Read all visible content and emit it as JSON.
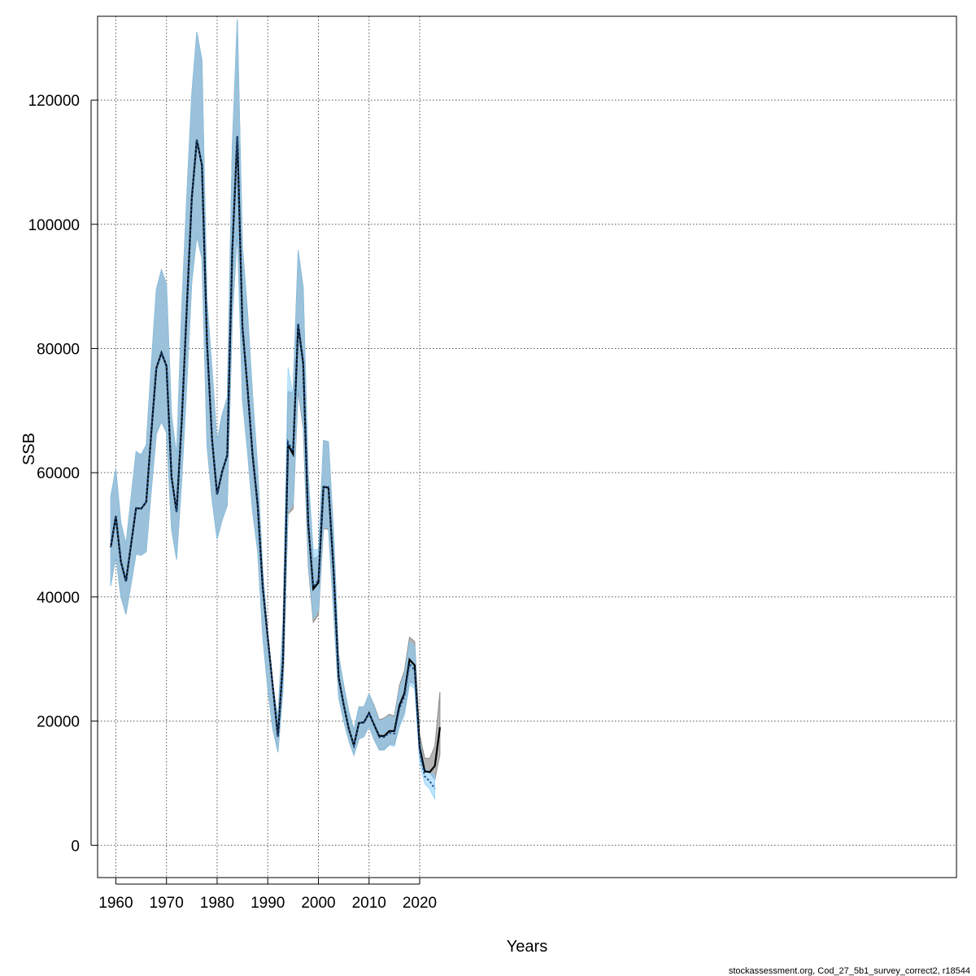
{
  "chart_data": {
    "type": "line",
    "xlabel": "Years",
    "ylabel": "SSB",
    "footer": "stockassessment.org, Cod_27_5b1_survey_correct2, r18544",
    "xlim": [
      1956.4,
      2126.0
    ],
    "ylim": [
      -5200,
      133500
    ],
    "grid": true,
    "x_ticks": [
      1960,
      1970,
      1980,
      1990,
      2000,
      2010,
      2020
    ],
    "y_ticks": [
      0,
      20000,
      40000,
      60000,
      80000,
      100000,
      120000
    ],
    "colors": {
      "base_band": "#b4b4b4",
      "base_band_edge": "#8c8c8c",
      "base_line": "#000000",
      "retro_band": "#87cefa",
      "retro_line": "#1e4f8a",
      "frame": "#000000",
      "grid": "#555555"
    },
    "series": [
      {
        "role": "base",
        "years": [
          1959,
          1960,
          1961,
          1962,
          1963,
          1964,
          1965,
          1966,
          1967,
          1968,
          1969,
          1970,
          1971,
          1972,
          1973,
          1974,
          1975,
          1976,
          1977,
          1978,
          1979,
          1980,
          1981,
          1982,
          1983,
          1984,
          1985,
          1986,
          1987,
          1988,
          1989,
          1990,
          1991,
          1992,
          1993,
          1994,
          1995,
          1996,
          1997,
          1998,
          1999,
          2000,
          2001,
          2002,
          2003,
          2004,
          2005,
          2006,
          2007,
          2008,
          2009,
          2010,
          2011,
          2012,
          2013,
          2014,
          2015,
          2016,
          2017,
          2018,
          2019,
          2020,
          2021,
          2022,
          2023,
          2024
        ],
        "estimate": [
          48000,
          53000,
          45700,
          42500,
          48400,
          54300,
          54200,
          55300,
          66400,
          76800,
          79300,
          77200,
          59300,
          53700,
          68200,
          86300,
          104200,
          113600,
          109500,
          81000,
          65400,
          56500,
          60200,
          62800,
          95800,
          114200,
          83400,
          73700,
          62900,
          54800,
          41600,
          33500,
          25600,
          17500,
          29500,
          64500,
          63000,
          83800,
          77600,
          51700,
          41300,
          42300,
          57700,
          57600,
          44100,
          27000,
          22600,
          18800,
          16100,
          19700,
          19800,
          21300,
          19400,
          17600,
          17600,
          18400,
          18400,
          22500,
          24500,
          29900,
          29000,
          15800,
          11900,
          11800,
          12800,
          19000
        ],
        "low": [
          41800,
          46500,
          40000,
          37200,
          42000,
          46900,
          46700,
          47300,
          57100,
          66200,
          68200,
          66400,
          50900,
          46000,
          58700,
          74000,
          90700,
          98100,
          94500,
          64400,
          55700,
          49300,
          52400,
          54700,
          84800,
          98700,
          71700,
          63400,
          53800,
          47300,
          33700,
          25200,
          18700,
          15000,
          24800,
          53300,
          54200,
          73300,
          67200,
          45100,
          35900,
          37100,
          51000,
          50900,
          37400,
          23800,
          20000,
          16900,
          14500,
          17100,
          17500,
          19200,
          17000,
          15400,
          15400,
          16300,
          16200,
          19400,
          21500,
          26400,
          25900,
          14000,
          11800,
          11700,
          10600,
          14600
        ],
        "high": [
          56200,
          60600,
          52000,
          48500,
          56000,
          63400,
          62900,
          64500,
          77500,
          89500,
          92700,
          90300,
          69300,
          62800,
          86400,
          104500,
          121000,
          131000,
          126400,
          87800,
          76700,
          65000,
          69400,
          72100,
          112600,
          133000,
          96400,
          86000,
          72600,
          60800,
          44400,
          34100,
          25900,
          20500,
          36000,
          73100,
          72800,
          95800,
          89800,
          59600,
          46100,
          46600,
          65200,
          65000,
          50200,
          30600,
          25800,
          21600,
          18600,
          22300,
          22300,
          24400,
          22500,
          20200,
          20500,
          21100,
          20800,
          25700,
          28100,
          33500,
          32800,
          17800,
          14000,
          14000,
          16000,
          24700
        ]
      },
      {
        "role": "retro",
        "years": [
          1959,
          1960,
          1961,
          1962,
          1963,
          1964,
          1965,
          1966,
          1967,
          1968,
          1969,
          1970,
          1971,
          1972,
          1973,
          1974,
          1975,
          1976,
          1977,
          1978,
          1979,
          1980,
          1981,
          1982,
          1983,
          1984,
          1985,
          1986,
          1987,
          1988,
          1989,
          1990,
          1991,
          1992,
          1993,
          1994,
          1995,
          1996,
          1997,
          1998,
          1999,
          2000,
          2001,
          2002,
          2003,
          2004,
          2005,
          2006,
          2007,
          2008,
          2009,
          2010,
          2011,
          2012,
          2013,
          2014,
          2015,
          2016,
          2017,
          2018,
          2019,
          2020,
          2021,
          2022,
          2023
        ],
        "estimate": [
          48000,
          53000,
          45700,
          42500,
          48400,
          54300,
          54200,
          55300,
          66400,
          76800,
          79300,
          77200,
          59300,
          53700,
          68200,
          86300,
          104200,
          113600,
          109500,
          81000,
          65400,
          56500,
          60200,
          62800,
          95800,
          114200,
          83400,
          73700,
          62900,
          54800,
          41600,
          33500,
          25600,
          17500,
          29500,
          65000,
          63500,
          84000,
          78000,
          52000,
          41700,
          42700,
          57800,
          57700,
          44100,
          27000,
          22600,
          18800,
          16100,
          19700,
          19800,
          21300,
          19300,
          17400,
          17400,
          18100,
          18000,
          22000,
          23900,
          29200,
          28200,
          15000,
          11100,
          10300,
          9100
        ],
        "low": [
          41800,
          46500,
          40000,
          37200,
          42000,
          46900,
          46700,
          47300,
          57100,
          66200,
          68200,
          66400,
          50900,
          46000,
          58700,
          74000,
          90700,
          98100,
          94500,
          64400,
          55700,
          49300,
          52400,
          54700,
          84800,
          98700,
          71700,
          63400,
          53800,
          47300,
          33700,
          25200,
          18700,
          15000,
          24800,
          53800,
          55000,
          73800,
          67800,
          45600,
          36500,
          37800,
          51200,
          51100,
          37400,
          23800,
          20000,
          16900,
          14500,
          17100,
          17500,
          19200,
          17000,
          15300,
          15300,
          16100,
          15900,
          19000,
          20900,
          25800,
          25200,
          13200,
          9900,
          9000,
          7400
        ],
        "high": [
          56200,
          60600,
          52000,
          48500,
          56000,
          63400,
          62900,
          64500,
          77500,
          89500,
          92700,
          90300,
          69300,
          62800,
          86400,
          104500,
          121000,
          131000,
          126400,
          87800,
          76700,
          65000,
          69400,
          72100,
          112600,
          133000,
          96400,
          86000,
          72600,
          60800,
          44400,
          34100,
          25900,
          20500,
          36000,
          77000,
          72500,
          95800,
          89800,
          59900,
          47600,
          47700,
          65200,
          65000,
          50200,
          30600,
          25800,
          21600,
          18600,
          22300,
          22300,
          24400,
          22300,
          20000,
          20300,
          20800,
          20500,
          25200,
          27500,
          32800,
          32100,
          17000,
          12500,
          11800,
          11300
        ]
      }
    ]
  }
}
